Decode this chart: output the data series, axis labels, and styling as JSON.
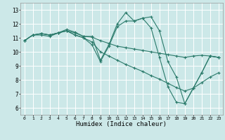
{
  "title": "",
  "xlabel": "Humidex (Indice chaleur)",
  "ylabel": "",
  "bg_color": "#cce8e8",
  "grid_color": "#ffffff",
  "line_color": "#2a7a6a",
  "xlim": [
    -0.5,
    23.5
  ],
  "ylim": [
    5.5,
    13.5
  ],
  "xticks": [
    0,
    1,
    2,
    3,
    4,
    5,
    6,
    7,
    8,
    9,
    10,
    11,
    12,
    13,
    14,
    15,
    16,
    17,
    18,
    19,
    20,
    21,
    22,
    23
  ],
  "yticks": [
    6,
    7,
    8,
    9,
    10,
    11,
    12,
    13
  ],
  "lines": [
    {
      "x": [
        0,
        1,
        2,
        3,
        4,
        5,
        6,
        7,
        8,
        9,
        10,
        11,
        12,
        13,
        14,
        15,
        16,
        17,
        18,
        19,
        20,
        21,
        22,
        23
      ],
      "y": [
        10.8,
        11.2,
        11.2,
        11.1,
        11.35,
        11.6,
        11.4,
        11.1,
        11.1,
        9.4,
        10.5,
        12.0,
        12.8,
        12.2,
        12.4,
        12.5,
        11.5,
        9.3,
        8.2,
        6.3,
        7.4,
        8.5,
        9.7,
        9.6
      ]
    },
    {
      "x": [
        0,
        1,
        2,
        3,
        4,
        5,
        6,
        7,
        8,
        9,
        10,
        11,
        12,
        13,
        14,
        15,
        16,
        17,
        18,
        19,
        20,
        21,
        22,
        23
      ],
      "y": [
        10.8,
        11.2,
        11.3,
        11.2,
        11.35,
        11.5,
        11.35,
        11.1,
        11.05,
        10.8,
        10.6,
        10.4,
        10.3,
        10.2,
        10.1,
        10.0,
        9.9,
        9.8,
        9.7,
        9.6,
        9.7,
        9.75,
        9.7,
        9.6
      ]
    },
    {
      "x": [
        0,
        1,
        2,
        3,
        4,
        5,
        6,
        7,
        8,
        9,
        10,
        11,
        12,
        13,
        14,
        15,
        16,
        17,
        18,
        19,
        20,
        21,
        22,
        23
      ],
      "y": [
        10.8,
        11.2,
        11.3,
        11.2,
        11.35,
        11.5,
        11.2,
        11.0,
        10.7,
        10.0,
        9.7,
        9.4,
        9.1,
        8.85,
        8.6,
        8.3,
        8.05,
        7.75,
        7.45,
        7.2,
        7.4,
        7.8,
        8.2,
        8.5
      ]
    },
    {
      "x": [
        0,
        1,
        2,
        3,
        4,
        5,
        6,
        7,
        8,
        9,
        10,
        11,
        12,
        13,
        14,
        15,
        16,
        17,
        18,
        19,
        20,
        21,
        22,
        23
      ],
      "y": [
        10.8,
        11.2,
        11.3,
        11.2,
        11.35,
        11.5,
        11.2,
        11.0,
        10.5,
        9.3,
        10.4,
        11.8,
        12.2,
        12.2,
        12.4,
        11.7,
        9.6,
        7.5,
        6.4,
        6.3,
        7.4,
        8.5,
        9.7,
        9.6
      ]
    }
  ]
}
